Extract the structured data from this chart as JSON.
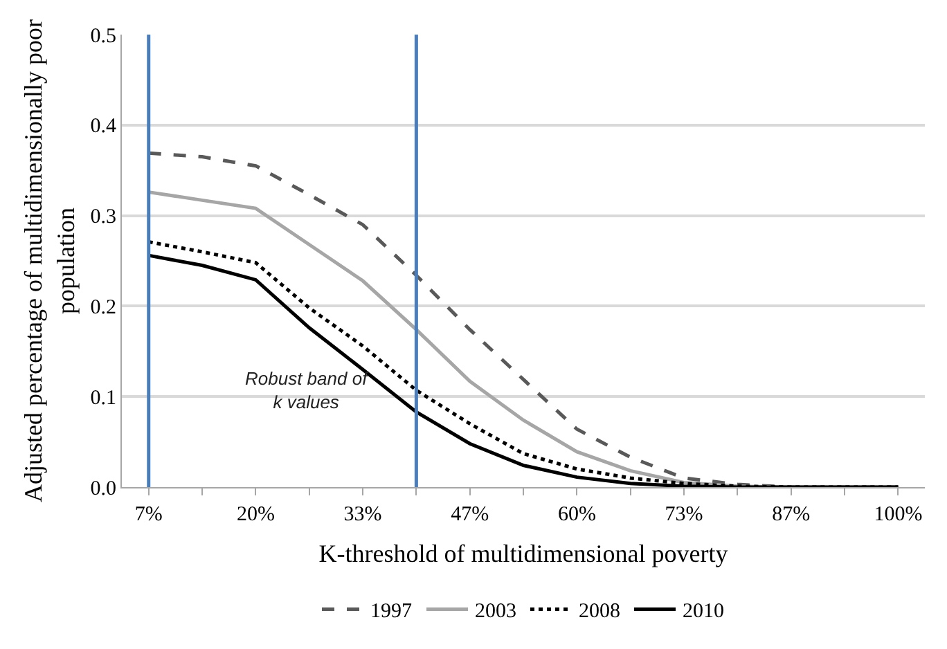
{
  "chart_data": {
    "type": "line",
    "xlabel": "K-threshold of multidimensional poverty",
    "ylabel": "Adjusted percentage of multidimensionally poor population",
    "x": [
      6.67,
      13.33,
      20,
      26.67,
      33.33,
      40,
      46.67,
      53.33,
      60,
      66.67,
      73.33,
      80,
      86.67,
      93.33,
      100
    ],
    "xlim": [
      3.33,
      103.33
    ],
    "xticks": [
      {
        "value": 6.67,
        "label": "7%"
      },
      {
        "value": 13.33,
        "label": null
      },
      {
        "value": 20,
        "label": "20%"
      },
      {
        "value": 26.67,
        "label": null
      },
      {
        "value": 33.33,
        "label": "33%"
      },
      {
        "value": 40,
        "label": null
      },
      {
        "value": 46.67,
        "label": "47%"
      },
      {
        "value": 53.33,
        "label": null
      },
      {
        "value": 60,
        "label": "60%"
      },
      {
        "value": 66.67,
        "label": null
      },
      {
        "value": 73.33,
        "label": "73%"
      },
      {
        "value": 80,
        "label": null
      },
      {
        "value": 86.67,
        "label": "87%"
      },
      {
        "value": 93.33,
        "label": null
      },
      {
        "value": 100,
        "label": "100%"
      }
    ],
    "ylim": [
      0,
      0.5
    ],
    "yticks": [
      {
        "value": 0,
        "label": "0.0"
      },
      {
        "value": 0.1,
        "label": "0.1"
      },
      {
        "value": 0.2,
        "label": "0.2"
      },
      {
        "value": 0.3,
        "label": "0.3"
      },
      {
        "value": 0.4,
        "label": "0.4"
      },
      {
        "value": 0.5,
        "label": "0.5"
      }
    ],
    "grid": "y",
    "legend": "bottom",
    "marker": "none",
    "series": [
      {
        "name": "1997",
        "color": "#595959",
        "line_style": "dashed",
        "values": [
          0.369,
          0.365,
          0.355,
          0.323,
          0.29,
          0.234,
          0.174,
          0.119,
          0.064,
          0.033,
          0.01,
          0.003,
          0,
          0,
          0
        ]
      },
      {
        "name": "2003",
        "color": "#a6a6a6",
        "line_style": "solid",
        "values": [
          0.326,
          0.317,
          0.308,
          0.268,
          0.228,
          0.174,
          0.117,
          0.074,
          0.039,
          0.018,
          0.005,
          0.001,
          0,
          0,
          0
        ]
      },
      {
        "name": "2008",
        "color": "#000000",
        "line_style": "dotted",
        "values": [
          0.271,
          0.26,
          0.248,
          0.198,
          0.156,
          0.107,
          0.07,
          0.037,
          0.02,
          0.01,
          0.004,
          0.001,
          0,
          0,
          0
        ]
      },
      {
        "name": "2010",
        "color": "#000000",
        "line_style": "solid",
        "values": [
          0.256,
          0.245,
          0.229,
          0.176,
          0.13,
          0.083,
          0.048,
          0.024,
          0.011,
          0.004,
          0.001,
          0,
          0,
          0,
          0
        ]
      }
    ],
    "ref_lines": [
      {
        "axis": "x",
        "value": 6.67,
        "color": "#4a7ebb",
        "line_style": "solid"
      },
      {
        "axis": "x",
        "value": 40,
        "color": "#4a7ebb",
        "line_style": "solid"
      }
    ],
    "annotations": [
      "Robust band of\nk values"
    ]
  }
}
